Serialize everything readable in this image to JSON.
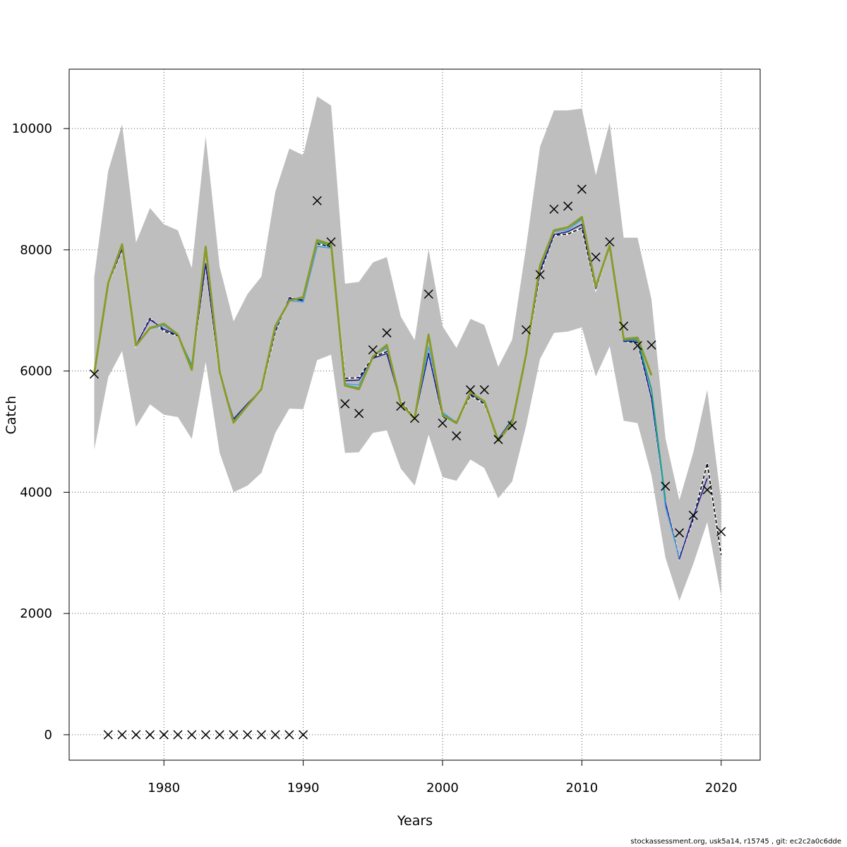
{
  "chart_data": {
    "type": "line",
    "xlabel": "Years",
    "ylabel": "Catch",
    "xlim": [
      1973.2,
      2022.8
    ],
    "ylim": [
      -420,
      10980
    ],
    "x_ticks": [
      1980,
      1990,
      2000,
      2010,
      2020
    ],
    "y_ticks": [
      0,
      2000,
      4000,
      6000,
      8000,
      10000
    ],
    "grid": true,
    "band": {
      "color": "#bebebe",
      "x": [
        1975,
        1976,
        1977,
        1978,
        1979,
        1980,
        1981,
        1982,
        1983,
        1984,
        1985,
        1986,
        1987,
        1988,
        1989,
        1990,
        1991,
        1992,
        1993,
        1994,
        1995,
        1996,
        1997,
        1998,
        1999,
        2000,
        2001,
        2002,
        2003,
        2004,
        2005,
        2006,
        2007,
        2008,
        2009,
        2010,
        2011,
        2012,
        2013,
        2014,
        2015,
        2016,
        2017,
        2018,
        2019,
        2020
      ],
      "lower": [
        4700,
        5900,
        6330,
        5080,
        5450,
        5280,
        5240,
        4880,
        6150,
        4650,
        4000,
        4110,
        4320,
        4980,
        5380,
        5370,
        6180,
        6270,
        4650,
        4660,
        4980,
        5020,
        4390,
        4110,
        4950,
        4250,
        4190,
        4540,
        4400,
        3900,
        4180,
        5100,
        6200,
        6630,
        6650,
        6720,
        5910,
        6410,
        5180,
        5140,
        4280,
        2920,
        2210,
        2820,
        3510,
        2290
      ],
      "upper": [
        7550,
        9300,
        10070,
        8120,
        8690,
        8420,
        8320,
        7700,
        9870,
        7720,
        6820,
        7270,
        7560,
        8960,
        9670,
        9560,
        10530,
        10380,
        7440,
        7470,
        7790,
        7880,
        6900,
        6510,
        8010,
        6740,
        6380,
        6860,
        6760,
        6070,
        6520,
        8050,
        9700,
        10300,
        10300,
        10330,
        9230,
        10100,
        8200,
        8200,
        7180,
        4890,
        3870,
        4660,
        5690,
        3860
      ]
    },
    "series": [
      {
        "color": "#000000",
        "dashed": true,
        "values": [
          5950,
          7440,
          8010,
          6420,
          6870,
          6660,
          6580,
          6060,
          7760,
          5950,
          5200,
          5450,
          5680,
          6650,
          7210,
          7170,
          8100,
          8050,
          5880,
          5890,
          6230,
          6320,
          5500,
          5220,
          6290,
          5240,
          5150,
          5600,
          5460,
          4870,
          5190,
          6250,
          7620,
          8240,
          8260,
          8360,
          7350,
          8070,
          6490,
          6470,
          5550,
          3830,
          2920,
          3560,
          4480,
          2970
        ]
      },
      {
        "color": "#1f1f8f",
        "values": [
          5960,
          7450,
          8020,
          6430,
          6850,
          6690,
          6590,
          6080,
          7770,
          5960,
          5210,
          5460,
          5690,
          6680,
          7200,
          7160,
          8060,
          8030,
          5840,
          5850,
          6210,
          6290,
          5480,
          5220,
          6280,
          5250,
          5160,
          5620,
          5480,
          4880,
          5200,
          6260,
          7650,
          8250,
          8300,
          8420,
          7360,
          8070,
          6490,
          6500,
          5550,
          3830,
          2900,
          3600,
          4230,
          null
        ]
      },
      {
        "color": "#4aa3df",
        "values": [
          5960,
          7450,
          8060,
          6440,
          6700,
          6750,
          6590,
          6100,
          7990,
          5970,
          5180,
          5440,
          5680,
          6700,
          7160,
          7140,
          8060,
          8030,
          5790,
          5770,
          6250,
          6380,
          5450,
          5220,
          6400,
          5320,
          5150,
          5640,
          5480,
          4870,
          5180,
          6280,
          7700,
          8300,
          8330,
          8500,
          7380,
          8070,
          6510,
          6510,
          5680,
          3760,
          2920,
          null,
          null,
          null
        ]
      },
      {
        "color": "#1b9e77",
        "values": [
          5960,
          7450,
          8080,
          6430,
          6720,
          6770,
          6590,
          6080,
          8040,
          5970,
          5170,
          5440,
          5690,
          6720,
          7170,
          7200,
          8130,
          8070,
          5770,
          5720,
          6240,
          6410,
          5460,
          5220,
          6560,
          5290,
          5150,
          5660,
          5490,
          4860,
          5180,
          6270,
          7730,
          8320,
          8360,
          8520,
          7390,
          8070,
          6510,
          6530,
          5700,
          3880,
          null,
          null,
          null,
          null
        ]
      },
      {
        "color": "#8a9a2b",
        "values": [
          5960,
          7450,
          8090,
          6420,
          6710,
          6780,
          6600,
          6020,
          8050,
          5980,
          5150,
          5430,
          5700,
          6740,
          7160,
          7220,
          8160,
          8090,
          5760,
          5700,
          6240,
          6430,
          5470,
          5210,
          6600,
          5270,
          5140,
          5650,
          5500,
          4850,
          5150,
          6270,
          7740,
          8320,
          8370,
          8540,
          7390,
          8070,
          6530,
          6550,
          5930,
          null,
          null,
          null,
          null,
          null
        ]
      }
    ],
    "observations": {
      "marker": "x",
      "x": [
        1975,
        1976,
        1977,
        1978,
        1979,
        1980,
        1981,
        1982,
        1983,
        1984,
        1985,
        1986,
        1987,
        1988,
        1989,
        1990,
        1991,
        1992,
        1993,
        1994,
        1995,
        1996,
        1997,
        1998,
        1999,
        2000,
        2001,
        2002,
        2003,
        2004,
        2005,
        2006,
        2007,
        2008,
        2009,
        2010,
        2011,
        2012,
        2013,
        2014,
        2015,
        2016,
        2017,
        2018,
        2019,
        2020
      ],
      "y": [
        5950,
        0,
        0,
        0,
        0,
        0,
        0,
        0,
        0,
        0,
        0,
        0,
        0,
        0,
        0,
        0,
        8810,
        8130,
        5460,
        5300,
        6350,
        6630,
        5420,
        5220,
        7270,
        5140,
        4930,
        5690,
        5690,
        4870,
        5100,
        6680,
        7590,
        8670,
        8720,
        9000,
        7880,
        8130,
        6740,
        6420,
        6430,
        4100,
        3330,
        3620,
        4040,
        3350
      ]
    }
  },
  "footer": {
    "text": "stockassessment.org, usk5a14, r15745 , git: ec2c2a0c6dde"
  }
}
